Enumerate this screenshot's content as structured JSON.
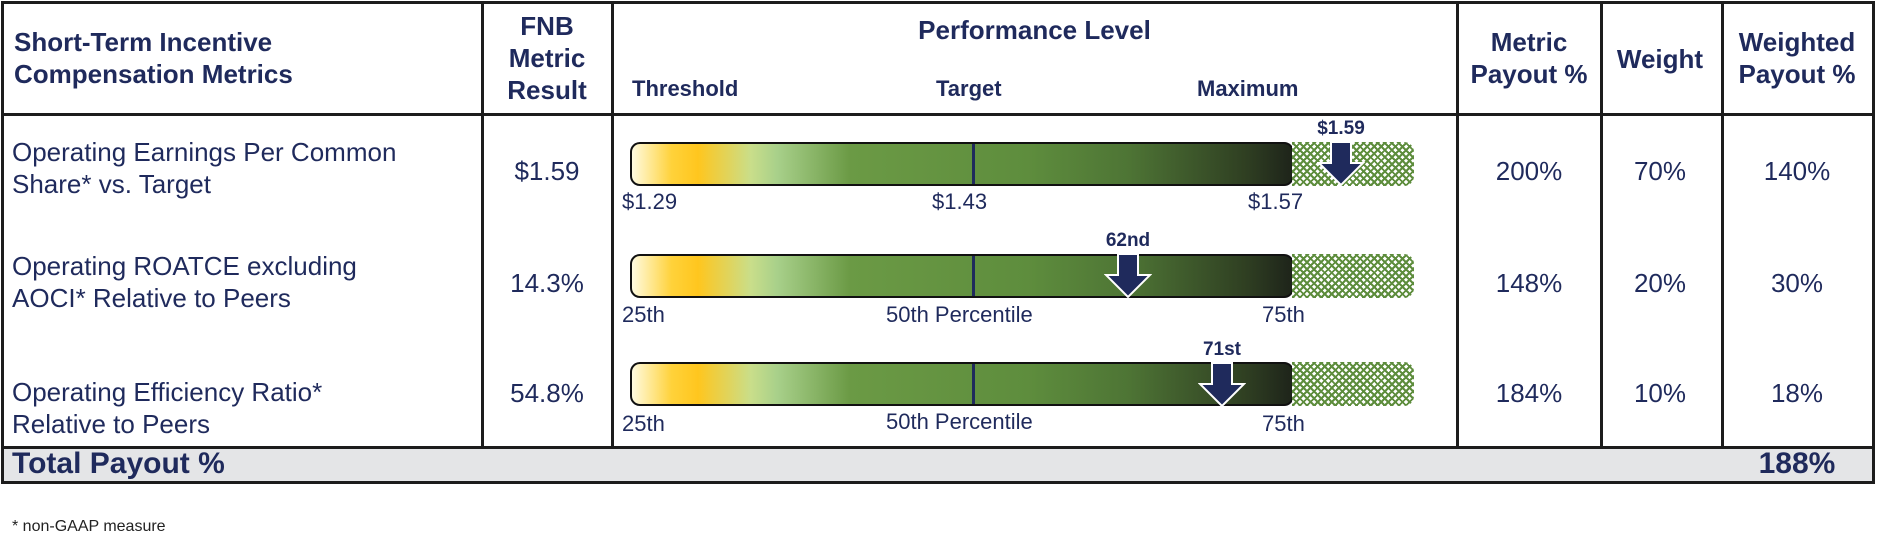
{
  "header": {
    "metrics_title": "Short-Term Incentive Compensation Metrics",
    "result_title": "FNB Metric Result",
    "performance_title": "Performance Level",
    "threshold": "Threshold",
    "target": "Target",
    "maximum": "Maximum",
    "metric_payout_title": "Metric Payout %",
    "weight_title": "Weight",
    "weighted_payout_title": "Weighted Payout %"
  },
  "rows": [
    {
      "metric_line1": "Operating Earnings Per Common",
      "metric_line2": "Share* vs. Target",
      "result": "$1.59",
      "tick_low": "$1.29",
      "tick_mid": "$1.43",
      "tick_high": "$1.57",
      "marker_label": "$1.59",
      "marker_position": 0.9,
      "metric_payout": "200%",
      "weight": "70%",
      "weighted_payout": "140%"
    },
    {
      "metric_line1": "Operating ROATCE excluding",
      "metric_line2": "AOCI* Relative to Peers",
      "result": "14.3%",
      "tick_low": "25th",
      "tick_mid": "50th Percentile",
      "tick_high": "75th",
      "marker_label": "62nd",
      "marker_position": 0.62,
      "metric_payout": "148%",
      "weight": "20%",
      "weighted_payout": "30%"
    },
    {
      "metric_line1": "Operating Efficiency Ratio*",
      "metric_line2": "Relative to Peers",
      "result": "54.8%",
      "tick_low": "25th",
      "tick_mid": "50th Percentile",
      "tick_high": "75th",
      "marker_label": "71st",
      "marker_position": 0.74,
      "metric_payout": "184%",
      "weight": "10%",
      "weighted_payout": "18%"
    }
  ],
  "total": {
    "label": "Total Payout %",
    "value": "188%"
  },
  "footnote": "* non-GAAP measure",
  "colors": {
    "navy": "#1f2a5c",
    "green": "#5e8d3d",
    "yellow": "#ffc61e",
    "total_bg": "#e4e5e7"
  }
}
